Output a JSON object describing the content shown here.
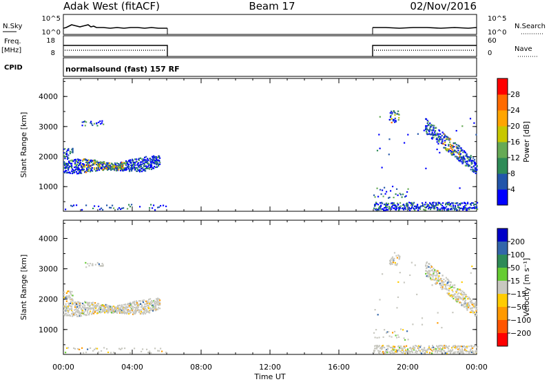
{
  "header": {
    "station": "Adak West (fitACF)",
    "beam": "Beam 17",
    "date": "02/Nov/2016"
  },
  "panel_labels": {
    "nsky": "N.Sky",
    "nsky_ticks": [
      "10^5",
      "10^0"
    ],
    "nsearch": "N.Search",
    "nsearch_ticks": [
      "10^5",
      "10^0"
    ],
    "freq": "Freq.",
    "freq_unit": "[MHz]",
    "freq_ticks": [
      "18",
      "8"
    ],
    "nave": "Nave",
    "nave_ticks": [
      "60",
      "0"
    ],
    "cpid": "CPID",
    "cpid_text": "normalsound (fast) 157 RF"
  },
  "chart_data": [
    {
      "type": "heatmap",
      "name": "power",
      "title": "",
      "xlabel": "Time UT",
      "ylabel": "Slant Range [km]",
      "x_ticks": [
        "00:00",
        "04:00",
        "08:00",
        "12:00",
        "16:00",
        "20:00",
        "00:00"
      ],
      "xlim": [
        0,
        24
      ],
      "ylim": [
        180,
        4600
      ],
      "y_ticks": [
        "1000",
        "2000",
        "3000",
        "4000"
      ],
      "colorbar": {
        "label": "Power [dB]",
        "ticks": [
          "4",
          "8",
          "12",
          "16",
          "20",
          "24",
          "28"
        ],
        "colors": [
          "#0000ff",
          "#2255aa",
          "#2e8b57",
          "#66aa55",
          "#c8c800",
          "#ffa500",
          "#ff6a00",
          "#ff0000"
        ]
      }
    },
    {
      "type": "heatmap",
      "name": "velocity",
      "title": "",
      "xlabel": "Time UT",
      "ylabel": "Slant Range [km]",
      "x_ticks": [
        "00:00",
        "04:00",
        "08:00",
        "12:00",
        "16:00",
        "20:00",
        "00:00"
      ],
      "xlim": [
        0,
        24
      ],
      "ylim": [
        180,
        4600
      ],
      "y_ticks": [
        "1000",
        "2000",
        "3000",
        "4000"
      ],
      "colorbar": {
        "label": "Velocity [m s⁻¹]",
        "ticks": [
          "200",
          "100",
          "50",
          "15",
          "−15",
          "−50",
          "−100",
          "−200"
        ],
        "colors": [
          "#0000c8",
          "#3366aa",
          "#2e8b57",
          "#66cc33",
          "#c8c8c0",
          "#ffcc00",
          "#ff9900",
          "#ff5500",
          "#ff0000"
        ]
      }
    }
  ],
  "colors": {
    "ground_scatter": "#c8c8c0",
    "axis": "#000000"
  }
}
